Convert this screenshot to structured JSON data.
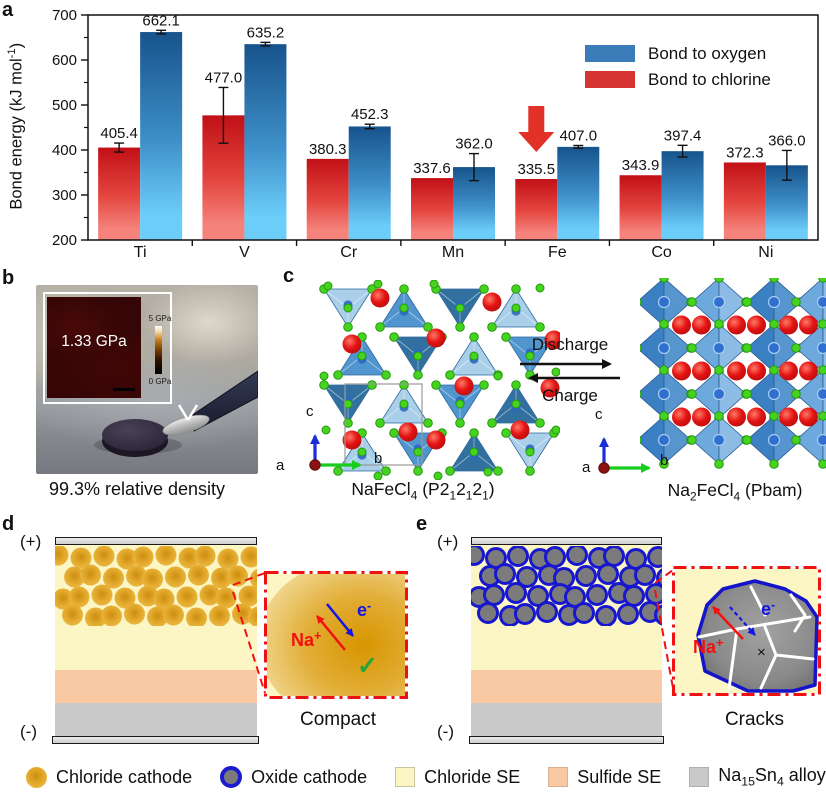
{
  "panels": {
    "a": {
      "letter": "a"
    },
    "b": {
      "letter": "b",
      "afm_value": "1.33 GPa",
      "colorbar_max": "5 GPa",
      "colorbar_min": "0 GPa",
      "caption": "99.3% relative density"
    },
    "c": {
      "letter": "c",
      "left_label_rich": [
        {
          "t": "NaFeCl"
        },
        {
          "t": "4",
          "sub": true
        },
        {
          "t": " (P2"
        },
        {
          "t": "1",
          "sub": true
        },
        {
          "t": "2"
        },
        {
          "t": "1",
          "sub": true
        },
        {
          "t": "2"
        },
        {
          "t": "1",
          "sub": true
        },
        {
          "t": ")"
        }
      ],
      "right_label_rich": [
        {
          "t": "Na"
        },
        {
          "t": "2",
          "sub": true
        },
        {
          "t": "FeCl"
        },
        {
          "t": "4",
          "sub": true
        },
        {
          "t": " (Pbam)"
        }
      ],
      "discharge_label": "Discharge",
      "charge_label": "Charge",
      "axis_c": "c",
      "axis_b": "b",
      "axis_a": "a"
    },
    "d": {
      "letter": "d",
      "plus": "(+)",
      "minus": "(-)",
      "caption": "Compact",
      "na_rich": [
        {
          "t": "Na"
        },
        {
          "t": "+",
          "sup": true
        }
      ],
      "e_rich": [
        {
          "t": "e"
        },
        {
          "t": "-",
          "sup": true
        }
      ],
      "check": "✓"
    },
    "e": {
      "letter": "e",
      "plus": "(+)",
      "minus": "(-)",
      "caption": "Cracks",
      "na_rich": [
        {
          "t": "Na"
        },
        {
          "t": "+",
          "sup": true
        }
      ],
      "e_rich": [
        {
          "t": "e"
        },
        {
          "t": "-",
          "sup": true
        }
      ],
      "cross": "×"
    }
  },
  "chart_data": {
    "type": "bar",
    "title": "",
    "ylabel_rich": [
      {
        "t": "Bond energy (kJ mol"
      },
      {
        "t": "-1",
        "sup": true
      },
      {
        "t": ")"
      }
    ],
    "categories": [
      "Ti",
      "V",
      "Cr",
      "Mn",
      "Fe",
      "Co",
      "Ni"
    ],
    "series": [
      {
        "name": "Bond to chlorine",
        "color": "#d63333",
        "gradient": [
          "#c11016",
          "#e4453f",
          "#f5837c"
        ],
        "values": [
          405.4,
          477.0,
          380.3,
          337.6,
          335.5,
          343.9,
          372.3
        ],
        "errors": [
          10,
          62,
          0,
          0,
          0,
          0,
          0
        ]
      },
      {
        "name": "Bond to oxygen",
        "color": "#3a7cb7",
        "gradient": [
          "#17538c",
          "#3e8fc9",
          "#6ccdf9"
        ],
        "values": [
          662.1,
          635.2,
          452.3,
          362.0,
          407.0,
          397.4,
          366.0
        ],
        "errors": [
          4,
          4,
          5,
          30,
          3,
          13,
          33
        ]
      }
    ],
    "ylim": [
      200,
      700
    ],
    "yticks": [
      200,
      300,
      400,
      500,
      600,
      700
    ],
    "yticks_minor": [
      250,
      350,
      450,
      550,
      650
    ],
    "legend": [
      "Bond to oxygen",
      "Bond to chlorine"
    ],
    "legend_position": "upper-right",
    "grid": false,
    "highlight_arrow": {
      "category": "Fe",
      "series": "Bond to chlorine",
      "color": "#e23227"
    }
  },
  "legend": {
    "items": [
      {
        "marker": "chloride-cathode",
        "label_rich": [
          {
            "t": "Chloride cathode"
          }
        ]
      },
      {
        "marker": "oxide-cathode",
        "label_rich": [
          {
            "t": "Oxide cathode"
          }
        ]
      },
      {
        "marker": "chloride-se",
        "label_rich": [
          {
            "t": "Chloride SE"
          }
        ]
      },
      {
        "marker": "sulfide-se",
        "label_rich": [
          {
            "t": "Sulfide SE"
          }
        ]
      },
      {
        "marker": "na15sn4-alloy",
        "label_rich": [
          {
            "t": "Na"
          },
          {
            "t": "15",
            "sub": true
          },
          {
            "t": "Sn"
          },
          {
            "t": "4",
            "sub": true
          },
          {
            "t": " alloy"
          }
        ]
      }
    ]
  },
  "colors": {
    "chart_blue": "#3a7cb7",
    "chart_red": "#d63333",
    "accent_red": "#ee1111",
    "na_red": "#f50f0f",
    "electron_blue": "#1414e6",
    "check_green": "#27a53b",
    "chloride_cathode_gold": "#e5ad2e",
    "oxide_gray": "#7b7b7b",
    "oxide_ring_blue": "#1b1bd0",
    "chloride_se": "#fcf6c5",
    "sulfide_se": "#f8c9a3",
    "alloy_gray": "#c9c9c9",
    "crystal_na_red": "#e01515",
    "crystal_cl_green": "#46d31f",
    "crystal_fe_blue": "#2e6fd0"
  }
}
